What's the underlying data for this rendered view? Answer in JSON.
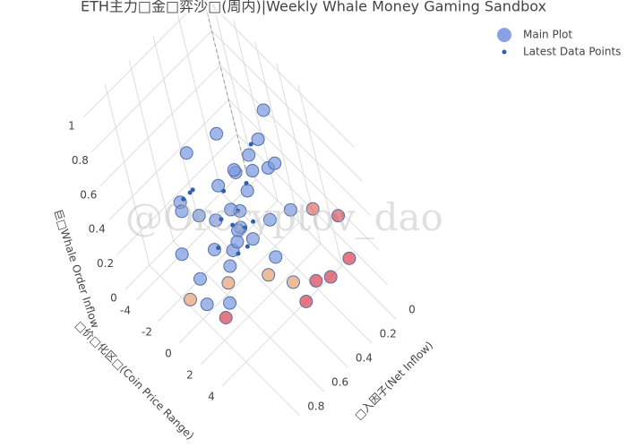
{
  "chart_data": {
    "type": "scatter3d",
    "title": "ETH主力□金□弈沙□(周内)|Weekly Whale Money Gaming Sandbox",
    "watermark": "@Orcryptov_dao",
    "x_label": "□价□化区□(Coin Price Range)",
    "y_label": "□入因子(Net Inflow)",
    "z_label": "巨□Whale Order Inflow",
    "xlim": [
      -5,
      9
    ],
    "ylim": [
      0,
      1
    ],
    "zlim": [
      0,
      1.05
    ],
    "xticks": [
      -4,
      -2,
      0,
      2,
      4
    ],
    "yticks": [
      0,
      0.2,
      0.4,
      0.6,
      0.8
    ],
    "zticks": [
      0,
      0.2,
      0.4,
      0.6,
      0.8,
      1
    ],
    "grid": true,
    "legend": "top-right",
    "series": [
      {
        "name": "Main Plot",
        "color": "#7b98e0",
        "size": 7,
        "x": [
          0,
          0.5,
          -0.5,
          0.2,
          -0.3,
          0.8,
          -1,
          0.1,
          0.3,
          -0.8,
          1,
          -0.2,
          0,
          0.4,
          -1.5,
          -2,
          -3,
          -4,
          -2.5,
          -1,
          0,
          1,
          -0.5,
          0.2,
          -0.1,
          2,
          3,
          2.5,
          1.5,
          0.6,
          -3.5,
          -2,
          2,
          3,
          1,
          4,
          5,
          6,
          5,
          4,
          -1,
          0.5,
          3
        ],
        "y": [
          0.4,
          0.45,
          0.35,
          0.5,
          0.42,
          0.38,
          0.5,
          0.3,
          0.55,
          0.3,
          0.5,
          0.6,
          0.35,
          0.25,
          0.4,
          0.55,
          0.6,
          0.55,
          0.7,
          0.7,
          0.75,
          0.65,
          0.2,
          0.15,
          0.05,
          0.3,
          0.2,
          0.35,
          0.2,
          0.1,
          0.45,
          0.3,
          0.4,
          0.3,
          0.7,
          0.2,
          0.15,
          0.05,
          0,
          0.3,
          0.8,
          0.6,
          0.05
        ],
        "z": [
          0.25,
          0.3,
          0.28,
          0.2,
          0.35,
          0.22,
          0.3,
          0.4,
          0.15,
          0.45,
          0.3,
          0.25,
          0.55,
          0.5,
          0.4,
          0.3,
          0.35,
          0.2,
          0.15,
          0.1,
          0.05,
          0.05,
          0.5,
          0.6,
          0.68,
          0.35,
          0.4,
          0.2,
          0.55,
          0.45,
          0.5,
          0.6,
          0.1,
          0.05,
          0,
          0.05,
          0.1,
          0.2,
          0.35,
          0,
          0.05,
          0.1,
          0.3
        ],
        "colors": [
          "#7b98e0",
          "#7b98e0",
          "#7b98e0",
          "#7b98e0",
          "#7b98e0",
          "#7b98e0",
          "#7b98e0",
          "#7b98e0",
          "#7b98e0",
          "#7b98e0",
          "#7b98e0",
          "#7b98e0",
          "#7b98e0",
          "#7b98e0",
          "#7b98e0",
          "#7b98e0",
          "#7b98e0",
          "#7b98e0",
          "#7b98e0",
          "#7b98e0",
          "#7b98e0",
          "#7b98e0",
          "#7b98e0",
          "#7b98e0",
          "#7b98e0",
          "#7b98e0",
          "#7b98e0",
          "#7b98e0",
          "#7b98e0",
          "#7b98e0",
          "#7b98e0",
          "#7b98e0",
          "#e8a070",
          "#e8a070",
          "#d94050",
          "#d94050",
          "#d94050",
          "#d94050",
          "#d94050",
          "#d94050",
          "#e8a070",
          "#e8a070",
          "#e07060"
        ]
      },
      {
        "name": "Latest Data Points",
        "color": "#2f5fb0",
        "size": 2.5,
        "x": [
          0,
          -0.3,
          0.5,
          -1,
          -2,
          -2.5,
          0.2,
          0.8,
          -0.6,
          1.2,
          -1.5,
          0.1,
          -0.2,
          0.4
        ],
        "y": [
          0.45,
          0.5,
          0.4,
          0.4,
          0.55,
          0.6,
          0.3,
          0.35,
          0.55,
          0.45,
          0.6,
          0.2,
          0.38,
          0.48
        ],
        "z": [
          0.3,
          0.35,
          0.28,
          0.4,
          0.45,
          0.4,
          0.45,
          0.3,
          0.2,
          0.25,
          0.5,
          0.6,
          0.32,
          0.18
        ]
      }
    ]
  }
}
